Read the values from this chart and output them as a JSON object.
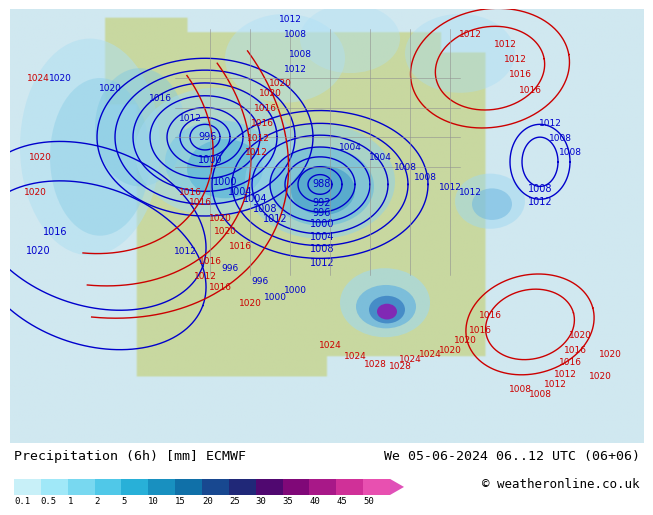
{
  "title_left": "Precipitation (6h) [mm] ECMWF",
  "title_right": "We 05-06-2024 06..12 UTC (06+06)",
  "copyright": "© weatheronline.co.uk",
  "colorbar_levels": [
    "0.1",
    "0.5",
    "1",
    "2",
    "5",
    "10",
    "15",
    "20",
    "25",
    "30",
    "35",
    "40",
    "45",
    "50"
  ],
  "colorbar_colors": [
    "#c8f0f8",
    "#a0e8f8",
    "#78d8f0",
    "#50c8e8",
    "#28b0d8",
    "#1890c0",
    "#1070a8",
    "#184890",
    "#202878",
    "#500870",
    "#800878",
    "#a81888",
    "#d03098",
    "#e850b0"
  ],
  "ocean_color": "#d0e8f0",
  "land_color": "#c8d8a0",
  "precip_light": "#b0e8f8",
  "precip_med": "#60b0e0",
  "precip_dark": "#2060b0",
  "precip_purple": "#9010a8",
  "bg_bottom": "#ffffff",
  "blue_line_color": "#0000cc",
  "red_line_color": "#cc0000",
  "gray_line_color": "#808080",
  "text_color": "#000000",
  "label_fontsize": 8,
  "title_fontsize": 9.5,
  "copyright_fontsize": 9,
  "contour_fontsize": 7
}
